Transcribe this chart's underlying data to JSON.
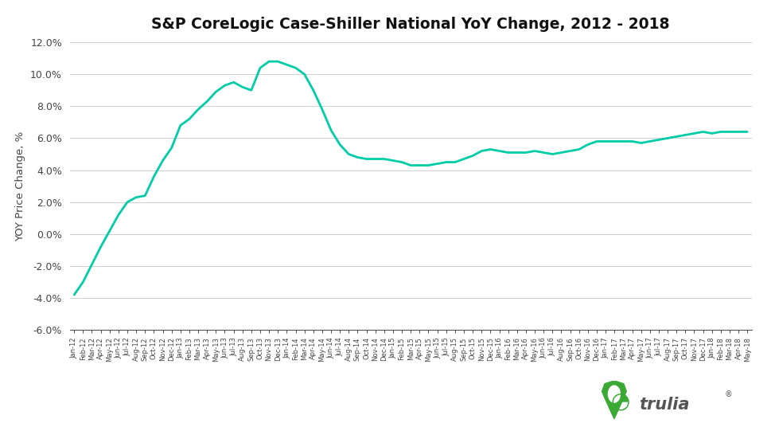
{
  "title": "S&P CoreLogic Case-Shiller National YoY Change, 2012 - 2018",
  "ylabel": "YOY Price Change, %",
  "line_color": "#00CDA8",
  "line_width": 2.0,
  "background_color": "#ffffff",
  "ylim": [
    -6.0,
    12.0
  ],
  "yticks": [
    -6.0,
    -4.0,
    -2.0,
    0.0,
    2.0,
    4.0,
    6.0,
    8.0,
    10.0,
    12.0
  ],
  "months": [
    "Jan-12",
    "Feb-12",
    "Mar-12",
    "Apr-12",
    "May-12",
    "Jun-12",
    "Jul-12",
    "Aug-12",
    "Sep-12",
    "Oct-12",
    "Nov-12",
    "Dec-12",
    "Jan-13",
    "Feb-13",
    "Mar-13",
    "Apr-13",
    "May-13",
    "Jun-13",
    "Jul-13",
    "Aug-13",
    "Sep-13",
    "Oct-13",
    "Nov-13",
    "Dec-13",
    "Jan-14",
    "Feb-14",
    "Mar-14",
    "Apr-14",
    "May-14",
    "Jun-14",
    "Jul-14",
    "Aug-14",
    "Sep-14",
    "Oct-14",
    "Nov-14",
    "Dec-14",
    "Jan-15",
    "Feb-15",
    "Mar-15",
    "Apr-15",
    "May-15",
    "Jun-15",
    "Jul-15",
    "Aug-15",
    "Sep-15",
    "Oct-15",
    "Nov-15",
    "Dec-15",
    "Jan-16",
    "Feb-16",
    "Mar-16",
    "Apr-16",
    "May-16",
    "Jun-16",
    "Jul-16",
    "Aug-16",
    "Sep-16",
    "Oct-16",
    "Nov-16",
    "Dec-16",
    "Jan-17",
    "Feb-17",
    "Mar-17",
    "Apr-17",
    "May-17",
    "Jun-17",
    "Jul-17",
    "Aug-17",
    "Sep-17",
    "Oct-17",
    "Nov-17",
    "Dec-17",
    "Jan-18",
    "Feb-18",
    "Mar-18",
    "Apr-18",
    "May-18"
  ],
  "values": [
    -3.8,
    -3.0,
    -1.9,
    -0.8,
    0.2,
    1.2,
    2.0,
    2.3,
    2.4,
    3.6,
    4.6,
    5.4,
    6.8,
    7.2,
    7.8,
    8.3,
    8.9,
    9.3,
    9.5,
    9.2,
    9.0,
    10.4,
    10.8,
    10.8,
    10.6,
    10.4,
    10.0,
    9.0,
    7.8,
    6.5,
    5.6,
    5.0,
    4.8,
    4.7,
    4.7,
    4.7,
    4.6,
    4.5,
    4.3,
    4.3,
    4.3,
    4.4,
    4.5,
    4.5,
    4.7,
    4.9,
    5.2,
    5.3,
    5.2,
    5.1,
    5.1,
    5.1,
    5.2,
    5.1,
    5.0,
    5.1,
    5.2,
    5.3,
    5.6,
    5.8,
    5.8,
    5.8,
    5.8,
    5.8,
    5.7,
    5.8,
    5.9,
    6.0,
    6.1,
    6.2,
    6.3,
    6.4,
    6.3,
    6.4,
    6.4,
    6.4,
    6.4
  ],
  "trulia_green": "#3aaa35",
  "tick_label_fontsize": 6.0,
  "ylabel_fontsize": 9.5,
  "title_fontsize": 13.5
}
